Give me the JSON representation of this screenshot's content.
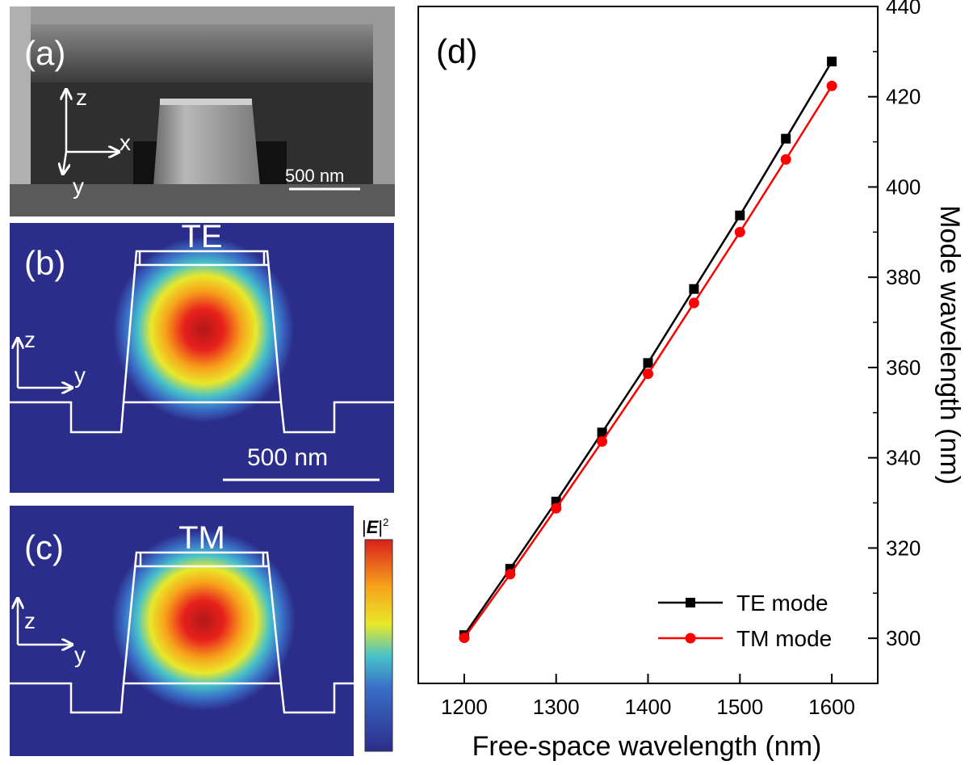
{
  "panels": {
    "a": {
      "label": "(a)",
      "axis_z": "z",
      "axis_x": "x",
      "axis_y": "y",
      "scale_bar": "500 nm"
    },
    "b": {
      "label": "(b)",
      "mode": "TE",
      "axis_z": "z",
      "axis_y": "y",
      "scale_bar": "500 nm"
    },
    "c": {
      "label": "(c)",
      "mode": "TM",
      "axis_z": "z",
      "axis_y": "y",
      "colorbar_label_prefix": "|",
      "colorbar_label_E": "E",
      "colorbar_label_suffix": "|",
      "colorbar_label_exp": "2"
    },
    "d": {
      "label": "(d)"
    }
  },
  "colors": {
    "te": "#000000",
    "tm": "#ff0000",
    "field_background": "#2b2d8a",
    "sem_dark": "#2e2e2e"
  },
  "chart_data": {
    "type": "line",
    "title": "",
    "xlabel": "Free-space wavelength (nm)",
    "ylabel": "Mode wavelength (nm)",
    "xlim": [
      1150,
      1650
    ],
    "ylim": [
      290,
      440
    ],
    "xticks": [
      1200,
      1300,
      1400,
      1500,
      1600
    ],
    "yticks": [
      300,
      320,
      340,
      360,
      380,
      400,
      420,
      440
    ],
    "x": [
      1200,
      1250,
      1300,
      1350,
      1400,
      1450,
      1500,
      1550,
      1600
    ],
    "series": [
      {
        "name": "TE mode",
        "marker": "square",
        "values": [
          300.7,
          315.4,
          330.3,
          345.6,
          361.0,
          377.4,
          393.7,
          410.7,
          427.8
        ]
      },
      {
        "name": "TM mode",
        "marker": "circle",
        "values": [
          300.1,
          314.2,
          328.8,
          343.6,
          358.6,
          374.3,
          390.0,
          406.1,
          422.4
        ]
      }
    ],
    "legend_position": "bottom-right"
  }
}
